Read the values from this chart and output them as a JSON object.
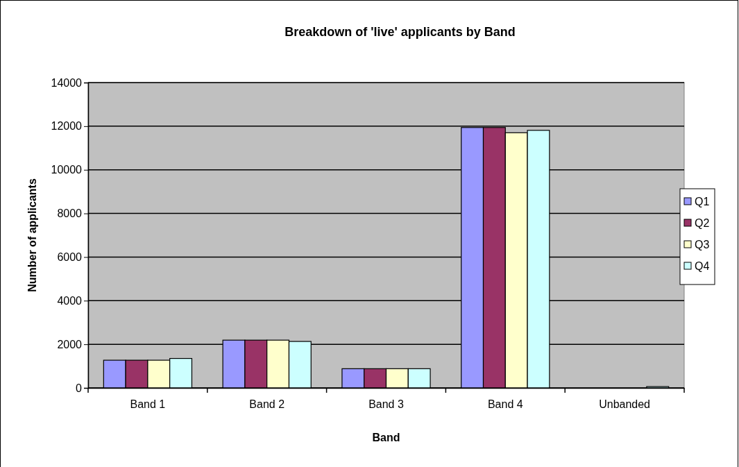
{
  "chart_data": {
    "type": "bar",
    "title": "Breakdown of 'live' applicants by Band",
    "xlabel": "Band",
    "ylabel": "Number of applicants",
    "categories": [
      "Band 1",
      "Band 2",
      "Band 3",
      "Band 4",
      "Unbanded"
    ],
    "series": [
      {
        "name": "Q1",
        "color": "#9999ff",
        "values": [
          1270,
          2190,
          880,
          11940,
          0
        ]
      },
      {
        "name": "Q2",
        "color": "#993366",
        "values": [
          1270,
          2190,
          880,
          11940,
          0
        ]
      },
      {
        "name": "Q3",
        "color": "#ffffcc",
        "values": [
          1270,
          2190,
          880,
          11700,
          0
        ]
      },
      {
        "name": "Q4",
        "color": "#ccffff",
        "values": [
          1350,
          2130,
          880,
          11810,
          60
        ]
      }
    ],
    "ylim": [
      0,
      14000
    ],
    "yticks": [
      0,
      2000,
      4000,
      6000,
      8000,
      10000,
      12000,
      14000
    ],
    "grid": "y",
    "legend": "right"
  }
}
